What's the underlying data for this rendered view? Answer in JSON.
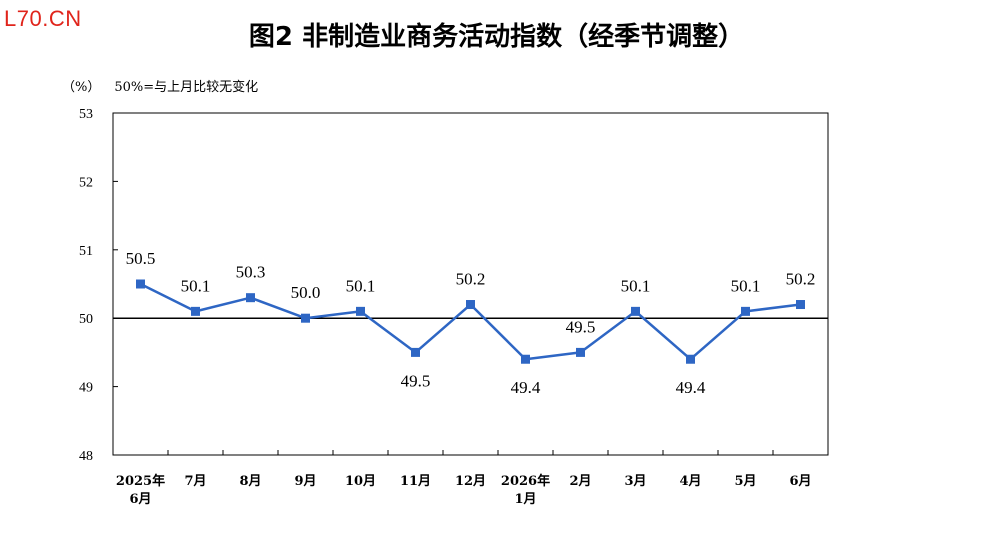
{
  "watermark": "L70.CN",
  "chart_data": {
    "type": "line",
    "title": "图2  非制造业商务活动指数（经季节调整）",
    "unit_label": "（%）",
    "note": "50%=与上月比较无变化",
    "categories": [
      [
        "2025年",
        "6月"
      ],
      [
        "7月"
      ],
      [
        "8月"
      ],
      [
        "9月"
      ],
      [
        "10月"
      ],
      [
        "11月"
      ],
      [
        "12月"
      ],
      [
        "2026年",
        "1月"
      ],
      [
        "2月"
      ],
      [
        "3月"
      ],
      [
        "4月"
      ],
      [
        "5月"
      ],
      [
        "6月"
      ]
    ],
    "values": [
      50.5,
      50.1,
      50.3,
      50.0,
      50.1,
      49.5,
      50.2,
      49.4,
      49.5,
      50.1,
      49.4,
      50.1,
      50.2
    ],
    "data_labels": [
      "50.5",
      "50.1",
      "50.3",
      "50.0",
      "50.1",
      "49.5",
      "50.2",
      "49.4",
      "49.5",
      "50.1",
      "49.4",
      "50.1",
      "50.2"
    ],
    "label_positions": [
      "above",
      "above",
      "above",
      "above",
      "above",
      "below",
      "above",
      "below",
      "above",
      "above",
      "below",
      "above",
      "above"
    ],
    "ylim": [
      48,
      53
    ],
    "yticks": [
      48,
      49,
      50,
      51,
      52,
      53
    ],
    "reference_line": 50,
    "line_color": "#2e66c4",
    "marker": "square",
    "grid": false
  }
}
